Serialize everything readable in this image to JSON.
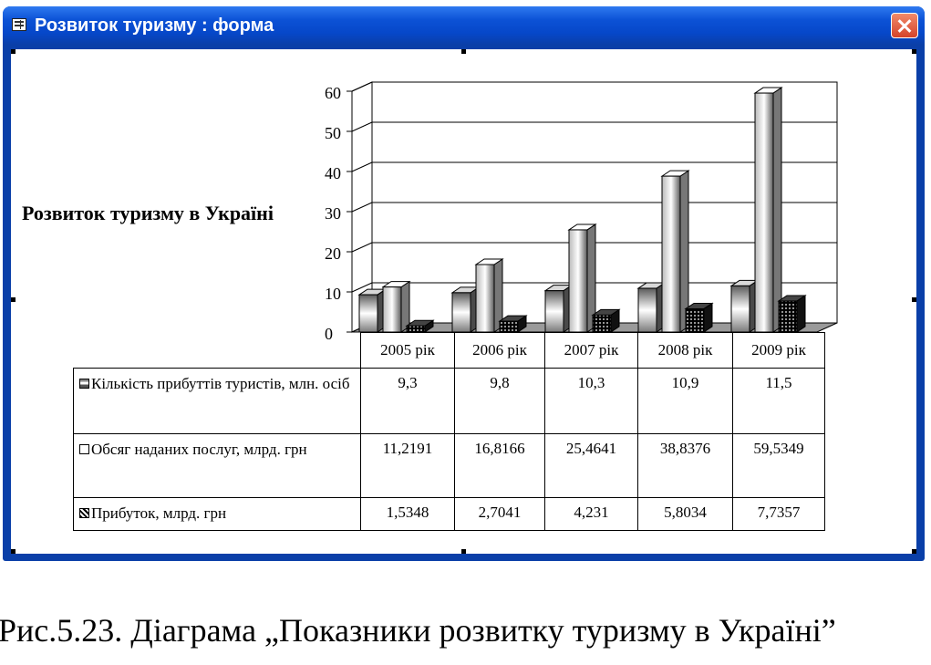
{
  "window": {
    "title": "Розвиток туризму : форма"
  },
  "chart_data": {
    "type": "bar",
    "title": "Розвиток туризму в Україні",
    "categories": [
      "2005 рік",
      "2006 рік",
      "2007 рік",
      "2008 рік",
      "2009 рік"
    ],
    "series": [
      {
        "name": "Кількість прибуттів туристів, млн. осіб",
        "values": [
          9.3,
          9.8,
          10.3,
          10.9,
          11.5
        ],
        "display": [
          "9,3",
          "9,8",
          "10,3",
          "10,9",
          "11,5"
        ]
      },
      {
        "name": "Обсяг наданих послуг, млрд. грн",
        "values": [
          11.2191,
          16.8166,
          25.4641,
          38.8376,
          59.5349
        ],
        "display": [
          "11,2191",
          "16,8166",
          "25,4641",
          "38,8376",
          "59,5349"
        ]
      },
      {
        "name": "Прибуток, млрд. грн",
        "values": [
          1.5348,
          2.7041,
          4.231,
          5.8034,
          7.7357
        ],
        "display": [
          "1,5348",
          "2,7041",
          "4,231",
          "5,8034",
          "7,7357"
        ]
      }
    ],
    "yticks": [
      "0",
      "10",
      "20",
      "30",
      "40",
      "50",
      "60"
    ],
    "ylim": [
      0,
      60
    ],
    "grid": true,
    "legend": "data table below chart"
  },
  "caption": "Рис.5.23. Діаграма „Показники розвитку туризму в Україні”"
}
